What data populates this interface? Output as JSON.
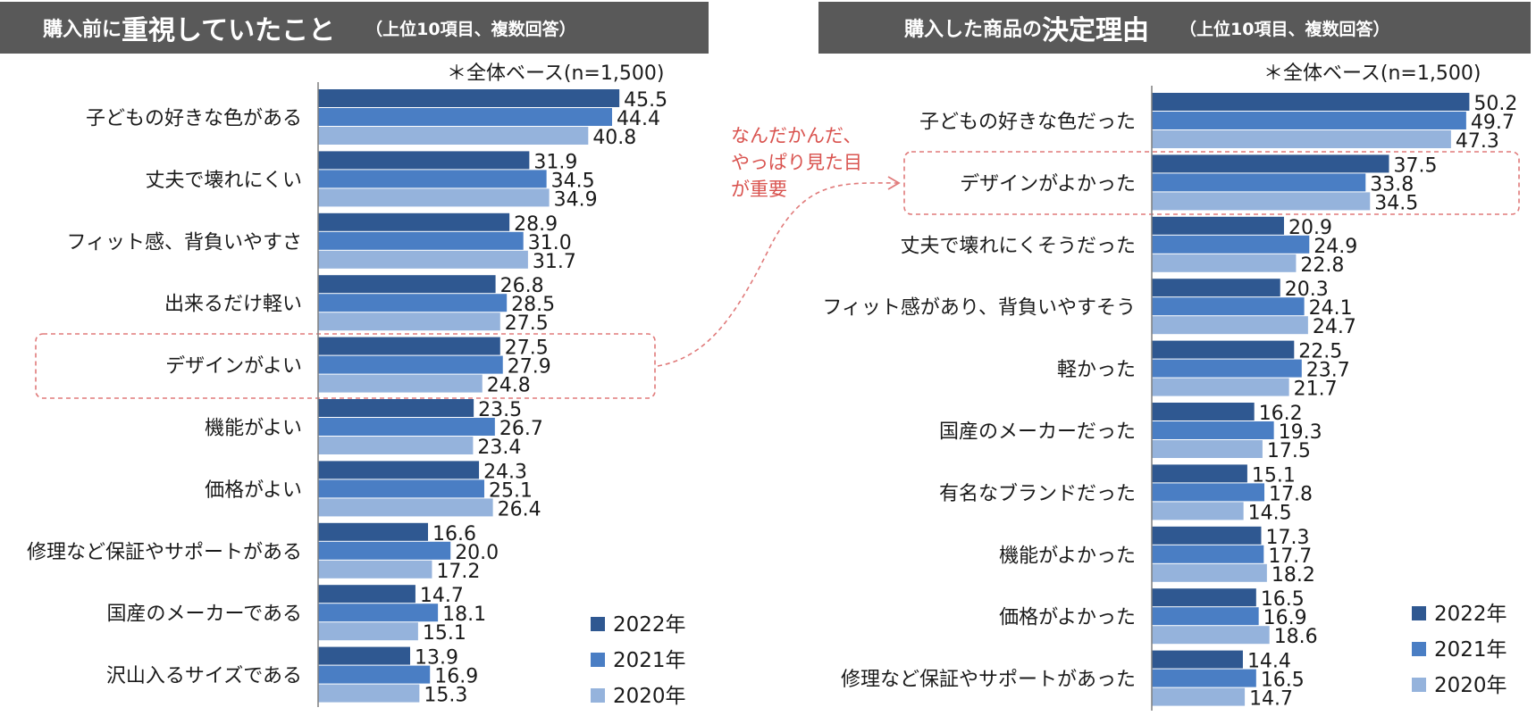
{
  "panels": {
    "left": {
      "title_prefix": "購入前に",
      "title_emphasis": "重視していたこと",
      "title_note": "（上位10項目、複数回答）",
      "base_note": "＊全体ベース(n=1,500)"
    },
    "right": {
      "title_prefix": "購入した商品の",
      "title_emphasis": "決定理由",
      "title_note": "（上位10項目、複数回答）",
      "base_note": "＊全体ベース(n=1,500)"
    }
  },
  "annotation": {
    "lines": [
      "なんだかんだ、",
      "やっぱり見た目",
      "が重要"
    ]
  },
  "colors": {
    "2022年": "#2f5891",
    "2021年": "#4a7ec4",
    "2020年": "#95b3dc",
    "axis": "#7f7f7f",
    "highlight": "#e07a7a"
  },
  "chart_data": [
    {
      "type": "bar",
      "orientation": "horizontal",
      "title": "購入前に重視していたこと",
      "categories": [
        "子どもの好きな色がある",
        "丈夫で壊れにくい",
        "フィット感、背負いやすさ",
        "出来るだけ軽い",
        "デザインがよい",
        "機能がよい",
        "価格がよい",
        "修理など保証やサポートがある",
        "国産のメーカーである",
        "沢山入るサイズである"
      ],
      "series": [
        {
          "name": "2022年",
          "values": [
            45.5,
            31.9,
            28.9,
            26.8,
            27.5,
            23.5,
            24.3,
            16.6,
            14.7,
            13.9
          ]
        },
        {
          "name": "2021年",
          "values": [
            44.4,
            34.5,
            31.0,
            28.5,
            27.9,
            26.7,
            25.1,
            20.0,
            18.1,
            16.9
          ]
        },
        {
          "name": "2020年",
          "values": [
            40.8,
            34.9,
            31.7,
            27.5,
            24.8,
            23.4,
            26.4,
            17.2,
            15.1,
            15.3
          ]
        }
      ],
      "highlight_category": "デザインがよい",
      "legend": [
        "2022年",
        "2021年",
        "2020年"
      ],
      "xlim": [
        0,
        60
      ]
    },
    {
      "type": "bar",
      "orientation": "horizontal",
      "title": "購入した商品の決定理由",
      "categories": [
        "子どもの好きな色だった",
        "デザインがよかった",
        "丈夫で壊れにくそうだった",
        "フィット感があり、背負いやすそう",
        "軽かった",
        "国産のメーカーだった",
        "有名なブランドだった",
        "機能がよかった",
        "価格がよかった",
        "修理など保証やサポートがあった"
      ],
      "series": [
        {
          "name": "2022年",
          "values": [
            50.2,
            37.5,
            20.9,
            20.3,
            22.5,
            16.2,
            15.1,
            17.3,
            16.5,
            14.4
          ]
        },
        {
          "name": "2021年",
          "values": [
            49.7,
            33.8,
            24.9,
            24.1,
            23.7,
            19.3,
            17.8,
            17.7,
            16.9,
            16.5
          ]
        },
        {
          "name": "2020年",
          "values": [
            47.3,
            34.5,
            22.8,
            24.7,
            21.7,
            17.5,
            14.5,
            18.2,
            18.6,
            14.7
          ]
        }
      ],
      "highlight_category": "デザインがよかった",
      "legend": [
        "2022年",
        "2021年",
        "2020年"
      ],
      "xlim": [
        0,
        60
      ]
    }
  ]
}
